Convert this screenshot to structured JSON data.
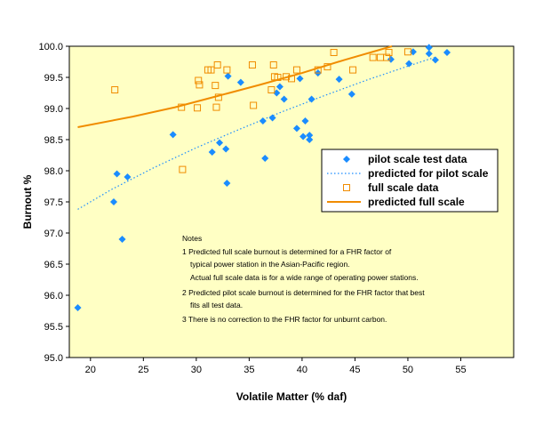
{
  "chart_data": {
    "type": "scatter",
    "xlabel": "Volatile Matter (% daf)",
    "ylabel": "Burnout %",
    "xlim": [
      18,
      60
    ],
    "ylim": [
      95.0,
      100.0
    ],
    "x_ticks": [
      20,
      25,
      30,
      35,
      40,
      45,
      50,
      55
    ],
    "y_ticks": [
      "95.0",
      "95.5",
      "96.0",
      "96.5",
      "97.0",
      "97.5",
      "98.0",
      "98.5",
      "99.0",
      "99.5",
      "100.0"
    ],
    "grid": false,
    "legend_position": "right",
    "plot_background": "#ffffc4",
    "series": [
      {
        "name": "pilot scale test data",
        "kind": "markers",
        "marker": "diamond",
        "color": "#1a8cff",
        "points": [
          [
            18.8,
            95.8
          ],
          [
            22.2,
            97.5
          ],
          [
            22.5,
            97.95
          ],
          [
            23.0,
            96.9
          ],
          [
            23.5,
            97.9
          ],
          [
            27.8,
            98.58
          ],
          [
            31.5,
            98.3
          ],
          [
            32.2,
            98.45
          ],
          [
            32.8,
            98.35
          ],
          [
            32.9,
            97.8
          ],
          [
            33.0,
            99.52
          ],
          [
            34.2,
            99.42
          ],
          [
            36.3,
            98.8
          ],
          [
            36.5,
            98.2
          ],
          [
            37.2,
            98.85
          ],
          [
            37.6,
            99.25
          ],
          [
            37.9,
            99.35
          ],
          [
            38.3,
            99.15
          ],
          [
            39.5,
            98.68
          ],
          [
            39.8,
            99.48
          ],
          [
            40.1,
            98.55
          ],
          [
            40.3,
            98.8
          ],
          [
            40.7,
            98.57
          ],
          [
            40.7,
            98.5
          ],
          [
            40.9,
            99.15
          ],
          [
            41.5,
            99.57
          ],
          [
            43.5,
            99.47
          ],
          [
            44.7,
            99.23
          ],
          [
            48.4,
            99.79
          ],
          [
            50.1,
            99.72
          ],
          [
            50.5,
            99.91
          ],
          [
            52.0,
            99.98
          ],
          [
            52.0,
            99.88
          ],
          [
            52.6,
            99.78
          ],
          [
            53.7,
            99.9
          ]
        ]
      },
      {
        "name": "predicted for pilot scale",
        "kind": "dotted-line",
        "color": "#1a8cff",
        "points": [
          [
            18.8,
            97.38
          ],
          [
            22,
            97.7
          ],
          [
            26,
            98.05
          ],
          [
            30,
            98.37
          ],
          [
            34,
            98.66
          ],
          [
            38,
            98.94
          ],
          [
            42,
            99.2
          ],
          [
            46,
            99.45
          ],
          [
            50,
            99.68
          ],
          [
            52.5,
            99.82
          ]
        ]
      },
      {
        "name": "full scale data",
        "kind": "markers",
        "marker": "open-square",
        "color": "#f08c00",
        "points": [
          [
            22.3,
            99.3
          ],
          [
            28.6,
            99.02
          ],
          [
            28.7,
            98.02
          ],
          [
            30.1,
            99.01
          ],
          [
            30.2,
            99.45
          ],
          [
            30.3,
            99.38
          ],
          [
            31.1,
            99.62
          ],
          [
            31.4,
            99.62
          ],
          [
            31.8,
            99.37
          ],
          [
            31.9,
            99.02
          ],
          [
            32.0,
            99.7
          ],
          [
            32.1,
            99.18
          ],
          [
            32.9,
            99.62
          ],
          [
            35.3,
            99.7
          ],
          [
            35.4,
            99.05
          ],
          [
            37.1,
            99.3
          ],
          [
            37.3,
            99.7
          ],
          [
            37.4,
            99.51
          ],
          [
            37.7,
            99.5
          ],
          [
            38.5,
            99.51
          ],
          [
            39.0,
            99.48
          ],
          [
            39.5,
            99.62
          ],
          [
            41.5,
            99.62
          ],
          [
            42.4,
            99.67
          ],
          [
            43.0,
            99.9
          ],
          [
            44.8,
            99.62
          ],
          [
            46.7,
            99.82
          ],
          [
            47.4,
            99.82
          ],
          [
            48.0,
            99.82
          ],
          [
            48.2,
            99.9
          ],
          [
            50.0,
            99.91
          ]
        ]
      },
      {
        "name": "predicted full scale",
        "kind": "line",
        "color": "#f08c00",
        "points": [
          [
            18.8,
            98.7
          ],
          [
            24,
            98.87
          ],
          [
            28,
            99.02
          ],
          [
            32,
            99.2
          ],
          [
            36,
            99.38
          ],
          [
            40,
            99.57
          ],
          [
            44,
            99.78
          ],
          [
            48.5,
            100.0
          ]
        ]
      }
    ],
    "notes": {
      "title": "Notes",
      "lines": [
        "1  Predicted full scale burnout is determined for a FHR factor of",
        "typical power station in the Asian-Pacific region.",
        "Actual full scale data is for a wide range of operating power stations.",
        "2  Predicted pilot scale burnout is determined for the FHR factor that best",
        "fits all test data.",
        "3  There is no correction to the FHR factor for unburnt carbon."
      ]
    }
  }
}
